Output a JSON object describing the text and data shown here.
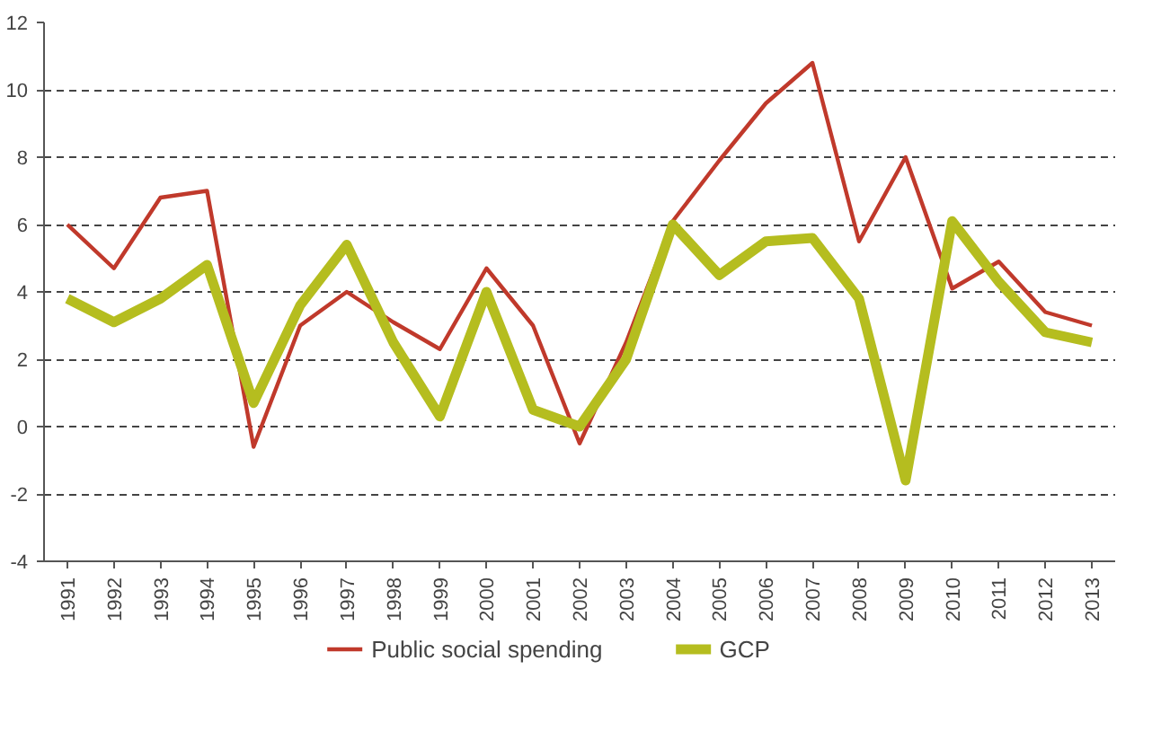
{
  "chart_data": {
    "type": "line",
    "categories": [
      "1991",
      "1992",
      "1993",
      "1994",
      "1995",
      "1996",
      "1997",
      "1998",
      "1999",
      "2000",
      "2001",
      "2002",
      "2003",
      "2004",
      "2005",
      "2006",
      "2007",
      "2008",
      "2009",
      "2010",
      "2011",
      "2012",
      "2013"
    ],
    "series": [
      {
        "name": "Public social spending",
        "color": "#c0392b",
        "values": [
          6.0,
          4.7,
          6.8,
          7.0,
          -0.6,
          3.0,
          4.0,
          3.1,
          2.3,
          4.7,
          3.0,
          -0.5,
          2.5,
          6.1,
          7.9,
          9.6,
          10.8,
          5.5,
          8.0,
          4.1,
          4.9,
          3.4,
          3.0
        ]
      },
      {
        "name": "GCP",
        "color": "#b5bd1f",
        "values": [
          3.8,
          3.1,
          3.8,
          4.8,
          0.7,
          3.6,
          5.4,
          2.5,
          0.3,
          4.0,
          0.5,
          0.0,
          2.0,
          6.0,
          4.5,
          5.5,
          5.6,
          3.8,
          -1.6,
          6.1,
          4.3,
          2.8,
          2.5
        ]
      }
    ],
    "ylim": [
      -4,
      12
    ],
    "yticks": [
      -4,
      -2,
      0,
      2,
      4,
      6,
      8,
      10,
      12
    ],
    "grid": "y",
    "legend": "bottom",
    "line_style": "solid"
  }
}
